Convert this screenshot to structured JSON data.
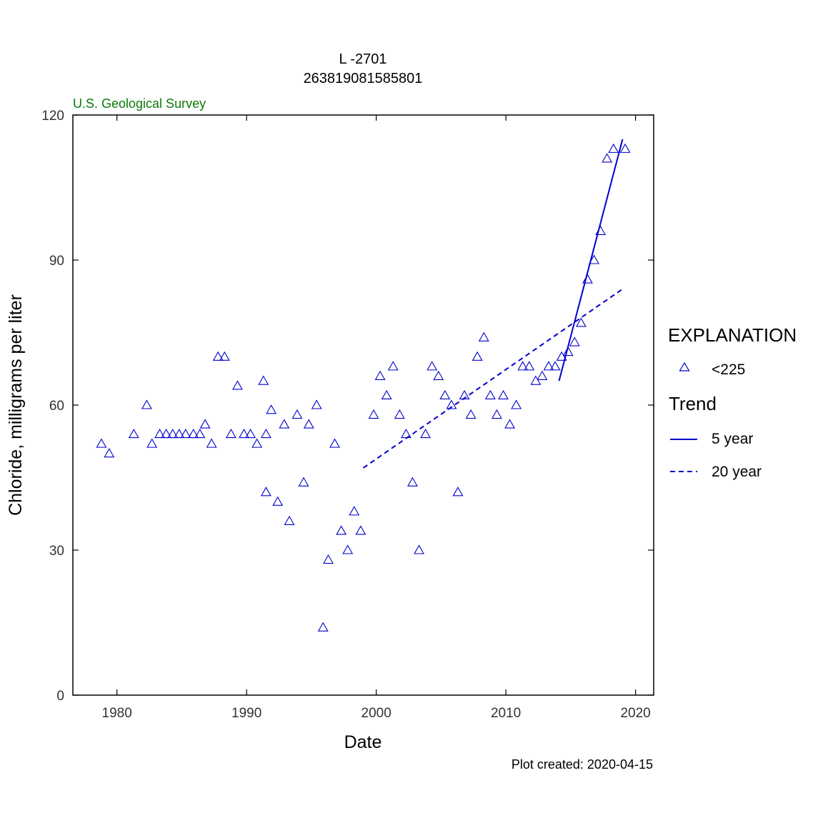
{
  "chart_data": {
    "type": "scatter",
    "title": "L -2701",
    "subtitle": "263819081585801",
    "agency": "U.S. Geological Survey",
    "xlabel": "Date",
    "ylabel": "Chloride, milligrams per liter",
    "xlim": [
      1976.6,
      2021.4
    ],
    "ylim": [
      0,
      120
    ],
    "x_ticks": [
      1980,
      1990,
      2000,
      2010,
      2020
    ],
    "y_ticks": [
      0,
      30,
      60,
      90,
      120
    ],
    "note": "Plot created: 2020-04-15",
    "legend": {
      "title": "EXPLANATION",
      "points_label": "<225",
      "trend_title": "Trend",
      "trend_5_label": "5 year",
      "trend_20_label": "20 year"
    },
    "colors": {
      "series": "#0000cc",
      "agency": "#0a7a0a"
    },
    "series": [
      {
        "name": "<225",
        "marker": "open-triangle",
        "x": [
          1978.8,
          1979.4,
          1981.3,
          1982.3,
          1982.7,
          1983.3,
          1983.8,
          1984.3,
          1984.8,
          1985.3,
          1985.9,
          1986.4,
          1986.8,
          1987.3,
          1987.8,
          1988.3,
          1988.8,
          1989.3,
          1989.8,
          1990.3,
          1990.8,
          1991.3,
          1991.5,
          1991.5,
          1991.9,
          1992.4,
          1992.9,
          1993.3,
          1993.9,
          1994.4,
          1994.8,
          1995.4,
          1995.9,
          1996.3,
          1996.8,
          1997.3,
          1997.8,
          1998.3,
          1998.8,
          1999.8,
          2000.3,
          2000.8,
          2001.3,
          2001.8,
          2002.3,
          2002.8,
          2003.3,
          2003.8,
          2004.3,
          2004.8,
          2005.3,
          2005.8,
          2006.3,
          2006.8,
          2007.3,
          2007.8,
          2008.3,
          2008.8,
          2009.3,
          2009.8,
          2010.3,
          2010.8,
          2011.3,
          2011.8,
          2012.3,
          2012.8,
          2013.3,
          2013.8,
          2014.3,
          2014.8,
          2015.3,
          2015.8,
          2016.3,
          2016.8,
          2017.3,
          2017.8,
          2018.3,
          2019.2
        ],
        "y": [
          52,
          50,
          54,
          60,
          52,
          54,
          54,
          54,
          54,
          54,
          54,
          54,
          56,
          52,
          70,
          70,
          54,
          64,
          54,
          54,
          52,
          65,
          54,
          42,
          59,
          40,
          56,
          36,
          58,
          44,
          56,
          60,
          14,
          28,
          52,
          34,
          30,
          38,
          34,
          58,
          66,
          62,
          68,
          58,
          54,
          44,
          30,
          54,
          68,
          66,
          62,
          60,
          42,
          62,
          58,
          70,
          74,
          62,
          58,
          62,
          56,
          60,
          68,
          68,
          65,
          66,
          68,
          68,
          70,
          71,
          73,
          77,
          86,
          90,
          96,
          111,
          113,
          113
        ]
      },
      {
        "name": "5 year",
        "line": "solid",
        "x": [
          2014.1,
          2019.0
        ],
        "y": [
          65,
          115
        ]
      },
      {
        "name": "20 year",
        "line": "dashed",
        "x": [
          1999.0,
          2019.0
        ],
        "y": [
          47,
          84
        ]
      }
    ],
    "grid": false,
    "legend_position": "right"
  }
}
